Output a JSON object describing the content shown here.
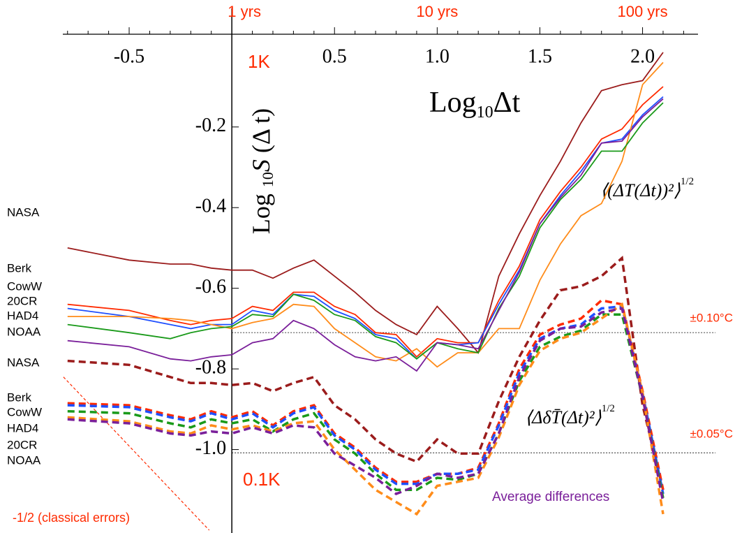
{
  "chart_data": {
    "type": "line",
    "x_label": {
      "text": "Log",
      "sub": "10",
      "rest": "Δt"
    },
    "y_label": {
      "text": "Log ",
      "sub": "10",
      "italic": "S",
      "rest": " (Δ t)"
    },
    "xlim": [
      -0.823,
      2.27
    ],
    "ylim": [
      -1.2,
      0.03
    ],
    "xticks": [
      -0.5,
      0.5,
      {
        "value": 1.0,
        "label": "1.0"
      },
      1.5,
      {
        "value": 2.0,
        "label": "2.0"
      }
    ],
    "xminorticks": [
      -0.8,
      -0.7,
      -0.6,
      -0.4,
      -0.3,
      -0.2,
      -0.1,
      0.1,
      0.2,
      0.3,
      0.4,
      0.6,
      0.7,
      0.8,
      0.9,
      1.1,
      1.2,
      1.3,
      1.4,
      1.6,
      1.7,
      1.8,
      1.9,
      2.1,
      2.2
    ],
    "x2ticks": [
      {
        "value": 0,
        "label": "1 yrs"
      },
      {
        "value": 1,
        "label": "10 yrs"
      },
      {
        "value": 2,
        "label": "100 yrs"
      }
    ],
    "yticks": [
      -0.2,
      -0.4,
      -0.6,
      -0.8,
      {
        "value": -1.0,
        "label": "-1.0"
      }
    ],
    "x": [
      -0.8,
      -0.5,
      -0.3,
      -0.2,
      -0.1,
      0,
      0.1,
      0.2,
      0.3,
      0.4,
      0.5,
      0.6,
      0.7,
      0.8,
      0.9,
      1.0,
      1.1,
      1.2,
      1.3,
      1.4,
      1.5,
      1.6,
      1.7,
      1.8,
      1.9,
      2.0,
      2.1
    ],
    "series": [
      {
        "name": "NASA",
        "color": "#9b1c1c",
        "dashed": false,
        "values": [
          -0.5,
          -0.53,
          -0.54,
          -0.54,
          -0.55,
          -0.555,
          -0.555,
          -0.575,
          -0.55,
          -0.53,
          -0.57,
          -0.61,
          -0.655,
          -0.69,
          -0.715,
          -0.645,
          -0.7,
          -0.76,
          -0.57,
          -0.465,
          -0.37,
          -0.285,
          -0.19,
          -0.11,
          -0.095,
          -0.085,
          -0.015
        ]
      },
      {
        "name": "Berk",
        "color": "#ff2a00",
        "dashed": false,
        "values": [
          -0.64,
          -0.655,
          -0.68,
          -0.69,
          -0.68,
          -0.675,
          -0.645,
          -0.655,
          -0.61,
          -0.61,
          -0.645,
          -0.665,
          -0.71,
          -0.715,
          -0.77,
          -0.725,
          -0.735,
          -0.735,
          -0.63,
          -0.545,
          -0.43,
          -0.36,
          -0.3,
          -0.23,
          -0.205,
          -0.145,
          -0.1
        ]
      },
      {
        "name": "CowW",
        "color": "#1f4fff",
        "dashed": false,
        "values": [
          -0.65,
          -0.67,
          -0.69,
          -0.7,
          -0.69,
          -0.69,
          -0.655,
          -0.665,
          -0.615,
          -0.62,
          -0.655,
          -0.675,
          -0.715,
          -0.725,
          -0.775,
          -0.735,
          -0.74,
          -0.735,
          -0.64,
          -0.555,
          -0.44,
          -0.37,
          -0.31,
          -0.24,
          -0.23,
          -0.17,
          -0.125
        ]
      },
      {
        "name": "20CR",
        "color": "#ff8c1a",
        "dashed": false,
        "values": [
          -0.67,
          -0.67,
          -0.675,
          -0.68,
          -0.69,
          -0.7,
          -0.685,
          -0.675,
          -0.64,
          -0.645,
          -0.7,
          -0.735,
          -0.77,
          -0.78,
          -0.75,
          -0.795,
          -0.76,
          -0.76,
          -0.7,
          -0.7,
          -0.58,
          -0.49,
          -0.42,
          -0.39,
          -0.285,
          -0.095,
          -0.04
        ]
      },
      {
        "name": "HAD4",
        "color": "#1a9a1a",
        "dashed": false,
        "values": [
          -0.69,
          -0.71,
          -0.725,
          -0.71,
          -0.7,
          -0.695,
          -0.665,
          -0.67,
          -0.615,
          -0.63,
          -0.665,
          -0.68,
          -0.72,
          -0.735,
          -0.775,
          -0.735,
          -0.75,
          -0.76,
          -0.65,
          -0.57,
          -0.45,
          -0.38,
          -0.33,
          -0.26,
          -0.26,
          -0.19,
          -0.14
        ]
      },
      {
        "name": "NOAA",
        "color": "#7a1f9a",
        "dashed": false,
        "values": [
          -0.73,
          -0.745,
          -0.775,
          -0.78,
          -0.77,
          -0.765,
          -0.735,
          -0.725,
          -0.68,
          -0.7,
          -0.74,
          -0.77,
          -0.78,
          -0.77,
          -0.805,
          -0.735,
          -0.74,
          -0.75,
          -0.655,
          -0.56,
          -0.44,
          -0.375,
          -0.32,
          -0.24,
          -0.235,
          -0.175,
          -0.13
        ]
      },
      {
        "name": "NASA",
        "color": "#9b1c1c",
        "dashed": true,
        "values": [
          -0.78,
          -0.79,
          -0.82,
          -0.835,
          -0.835,
          -0.84,
          -0.835,
          -0.855,
          -0.835,
          -0.82,
          -0.89,
          -0.925,
          -0.975,
          -1.01,
          -1.03,
          -0.975,
          -1.01,
          -1.01,
          -0.88,
          -0.77,
          -0.68,
          -0.605,
          -0.595,
          -0.57,
          -0.525,
          -0.89,
          -1.1
        ]
      },
      {
        "name": "Berk",
        "color": "#ff2a00",
        "dashed": true,
        "values": [
          -0.885,
          -0.89,
          -0.915,
          -0.925,
          -0.905,
          -0.92,
          -0.905,
          -0.94,
          -0.905,
          -0.89,
          -0.96,
          -0.995,
          -1.045,
          -1.08,
          -1.08,
          -1.06,
          -1.06,
          -1.045,
          -0.935,
          -0.8,
          -0.715,
          -0.69,
          -0.675,
          -0.63,
          -0.64,
          -0.855,
          -1.1
        ]
      },
      {
        "name": "CowW",
        "color": "#1f4fff",
        "dashed": true,
        "values": [
          -0.89,
          -0.895,
          -0.92,
          -0.93,
          -0.91,
          -0.925,
          -0.91,
          -0.945,
          -0.91,
          -0.895,
          -0.965,
          -1.0,
          -1.05,
          -1.085,
          -1.085,
          -1.06,
          -1.06,
          -1.05,
          -0.94,
          -0.81,
          -0.725,
          -0.7,
          -0.69,
          -0.65,
          -0.645,
          -0.86,
          -1.11
        ]
      },
      {
        "name": "HAD4",
        "color": "#1a9a1a",
        "dashed": true,
        "values": [
          -0.905,
          -0.91,
          -0.935,
          -0.945,
          -0.925,
          -0.935,
          -0.925,
          -0.955,
          -0.925,
          -0.91,
          -0.975,
          -1.01,
          -1.06,
          -1.1,
          -1.1,
          -1.07,
          -1.075,
          -1.06,
          -0.96,
          -0.83,
          -0.745,
          -0.72,
          -0.705,
          -0.665,
          -0.665,
          -0.87,
          -1.12
        ]
      },
      {
        "name": "20CR",
        "color": "#ff8c1a",
        "dashed": true,
        "values": [
          -0.92,
          -0.93,
          -0.955,
          -0.96,
          -0.94,
          -0.95,
          -0.94,
          -0.955,
          -0.935,
          -0.93,
          -1.0,
          -1.05,
          -1.1,
          -1.13,
          -1.16,
          -1.09,
          -1.08,
          -1.07,
          -0.97,
          -0.84,
          -0.755,
          -0.725,
          -0.71,
          -0.675,
          -0.64,
          -0.86,
          -1.16
        ]
      },
      {
        "name": "NOAA",
        "color": "#7a1f9a",
        "dashed": true,
        "values": [
          -0.925,
          -0.935,
          -0.96,
          -0.965,
          -0.955,
          -0.96,
          -0.945,
          -0.96,
          -0.94,
          -0.945,
          -1.01,
          -1.04,
          -1.07,
          -1.11,
          -1.09,
          -1.06,
          -1.07,
          -1.06,
          -0.96,
          -0.82,
          -0.73,
          -0.7,
          -0.695,
          -0.66,
          -0.65,
          -0.87,
          -1.13
        ]
      }
    ],
    "hlines": [
      {
        "value": -0.71,
        "label": "±0.10°C"
      },
      {
        "value": -1.008,
        "label": "±0.05°C"
      }
    ],
    "reference_line": {
      "label": "-1/2 (classical errors)",
      "x": [
        -0.82,
        -0.11
      ],
      "y": [
        -0.82,
        -1.2
      ],
      "color": "#ff2a00"
    },
    "annotations": {
      "big_scale": "1K",
      "small_scale": "0.1K",
      "avg": "Average differences",
      "formula1": "⟨(ΔT(Δt))²⟩",
      "formula1_exp": "1/2",
      "formula2": "⟨ΔδT̄(Δt)²⟩",
      "formula2_exp": "1/2"
    }
  }
}
